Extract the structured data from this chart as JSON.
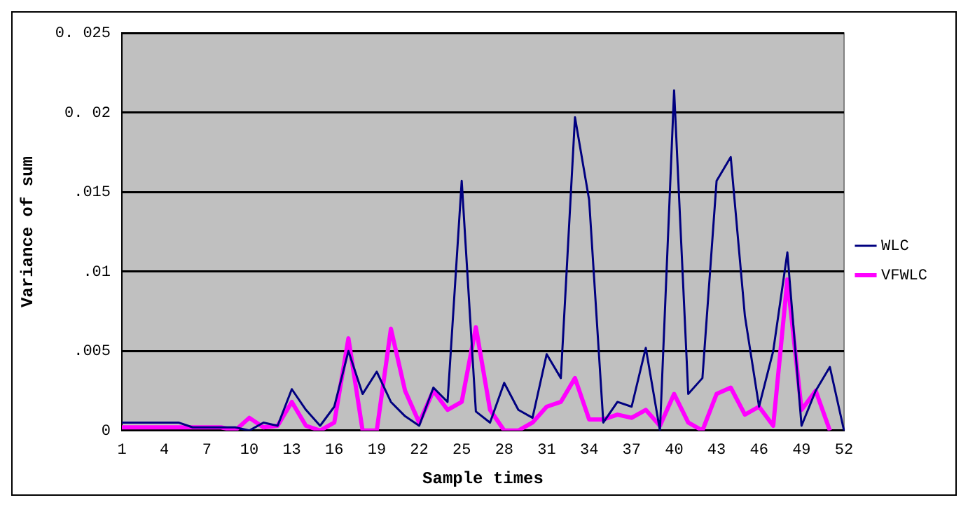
{
  "chart_data": {
    "type": "line",
    "xlabel": "Sample times",
    "ylabel": "Variance of sum",
    "categories": [
      "1",
      null,
      null,
      "4",
      null,
      null,
      "7",
      null,
      null,
      "10",
      null,
      null,
      "13",
      null,
      null,
      "16",
      null,
      null,
      "19",
      null,
      null,
      "22",
      null,
      null,
      "25",
      null,
      null,
      "28",
      null,
      null,
      "31",
      null,
      null,
      "34",
      null,
      null,
      "37",
      null,
      null,
      "40",
      null,
      null,
      "43",
      null,
      null,
      "46",
      null,
      null,
      "49",
      null,
      null,
      "52"
    ],
    "series": [
      {
        "name": "WLC",
        "color": "#000080",
        "values": [
          0.0005,
          0.0005,
          0.0005,
          0.0005,
          0.0005,
          0.0002,
          0.0002,
          0.0002,
          0.0002,
          0,
          0.0005,
          0.0003,
          0.0026,
          0.0013,
          0.0003,
          0.0015,
          0.005,
          0.0023,
          0.0037,
          0.0018,
          0.0009,
          0.0003,
          0.0027,
          0.0018,
          0.0157,
          0.0012,
          0.0005,
          0.003,
          0.0013,
          0.0008,
          0.0048,
          0.0033,
          0.0197,
          0.0145,
          0.0005,
          0.0018,
          0.0015,
          0.0052,
          0,
          0.0214,
          0.0023,
          0.0033,
          0.0157,
          0.0172,
          0.0072,
          0.0015,
          0.005,
          0.0112,
          0.0003,
          0.0025,
          0.004,
          0
        ]
      },
      {
        "name": "VFWLC",
        "color": "#ff00ff",
        "values": [
          0.0002,
          0.0002,
          0.0002,
          0.0002,
          0.0002,
          0.0002,
          0.0002,
          0.0002,
          0,
          0.0008,
          0.0002,
          0.0003,
          0.0018,
          0.0003,
          0,
          0.0005,
          0.0058,
          0,
          0,
          0.0064,
          0.0025,
          0.0005,
          0.0025,
          0.0013,
          0.0018,
          0.0065,
          0.0013,
          0,
          0,
          0.0005,
          0.0015,
          0.0018,
          0.0033,
          0.0007,
          0.0007,
          0.001,
          0.0008,
          0.0013,
          0.0003,
          0.0023,
          0.0005,
          0,
          0.0023,
          0.0027,
          0.001,
          0.0015,
          0.0003,
          0.0095,
          0.0013,
          0.0025,
          0,
          null
        ]
      }
    ],
    "ylim": [
      0,
      0.025
    ],
    "yticks": [
      {
        "value": 0,
        "label": "0"
      },
      {
        "value": 0.005,
        "label": ".005"
      },
      {
        "value": 0.01,
        "label": ".01"
      },
      {
        "value": 0.015,
        "label": ".015"
      },
      {
        "value": 0.02,
        "label": "0. 02"
      },
      {
        "value": 0.025,
        "label": "0. 025"
      }
    ],
    "grid": "y",
    "legend": "right",
    "marker": "none",
    "line_style": "solid"
  }
}
